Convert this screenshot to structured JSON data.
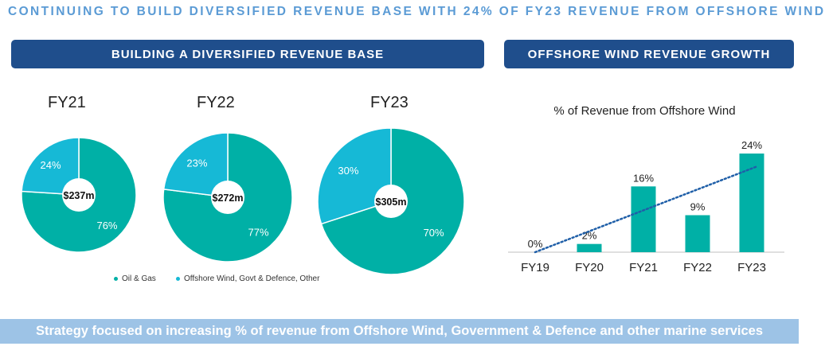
{
  "headline": "CONTINUING TO BUILD DIVERSIFIED REVENUE BASE WITH 24% OF FY23 REVENUE FROM OFFSHORE WIND",
  "left_banner": "BUILDING A DIVERSIFIED REVENUE BASE",
  "right_banner": "OFFSHORE WIND REVENUE GROWTH",
  "footer": "Strategy focused on increasing % of revenue from Offshore Wind, Government & Defence and other marine services",
  "colors": {
    "oil_gas": "#00b0a6",
    "offshore": "#16b9d6",
    "banner": "#1f4e8c",
    "footer": "#9dc3e6"
  },
  "chart_data": [
    {
      "type": "pie",
      "title": "FY21",
      "center_label": "$237m",
      "legend": [
        "Oil & Gas",
        "Offshore Wind, Govt & Defence, Other"
      ],
      "slices": [
        {
          "name": "Oil & Gas",
          "value": 76,
          "label": "76%"
        },
        {
          "name": "Offshore Wind, Govt & Defence, Other",
          "value": 24,
          "label": "24%"
        }
      ]
    },
    {
      "type": "pie",
      "title": "FY22",
      "center_label": "$272m",
      "slices": [
        {
          "name": "Oil & Gas",
          "value": 77,
          "label": "77%"
        },
        {
          "name": "Offshore Wind, Govt & Defence, Other",
          "value": 23,
          "label": "23%"
        }
      ]
    },
    {
      "type": "pie",
      "title": "FY23",
      "center_label": "$305m",
      "slices": [
        {
          "name": "Oil & Gas",
          "value": 70,
          "label": "70%"
        },
        {
          "name": "Offshore Wind, Govt & Defence, Other",
          "value": 30,
          "label": "30%"
        }
      ]
    },
    {
      "type": "bar",
      "title": "% of Revenue from Offshore Wind",
      "categories": [
        "FY19",
        "FY20",
        "FY21",
        "FY22",
        "FY23"
      ],
      "values": [
        0,
        2,
        16,
        9,
        24
      ],
      "labels": [
        "0%",
        "2%",
        "16%",
        "9%",
        "24%"
      ],
      "trendline": "linear, dotted",
      "ylim": [
        0,
        24
      ]
    }
  ]
}
